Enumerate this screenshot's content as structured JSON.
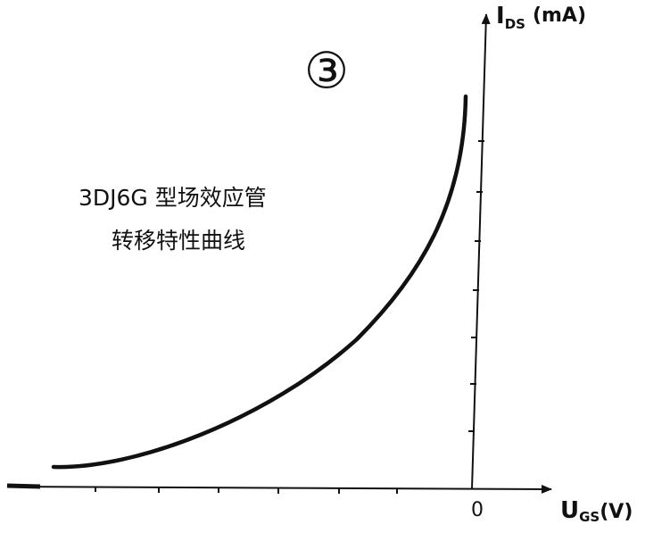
{
  "figure_number": "③",
  "title": {
    "line1": "3DJ6G 型场效应管",
    "line2": "转移特性曲线"
  },
  "y_axis_label": {
    "symbol": "I",
    "subscript": "DS",
    "unit": "(mA)"
  },
  "x_axis_label": {
    "symbol": "U",
    "subscript": "GS",
    "unit": "(V)"
  },
  "origin_label": "0"
}
